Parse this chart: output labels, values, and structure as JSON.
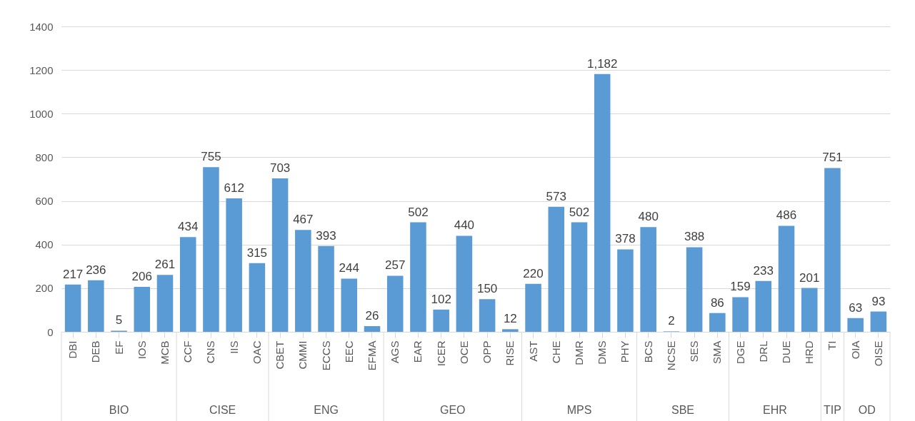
{
  "chart_data": {
    "type": "bar",
    "categories": [
      "DBI",
      "DEB",
      "EF",
      "IOS",
      "MCB",
      "CCF",
      "CNS",
      "IIS",
      "OAC",
      "CBET",
      "CMMI",
      "ECCS",
      "EEC",
      "EFMA",
      "AGS",
      "EAR",
      "ICER",
      "OCE",
      "OPP",
      "RISE",
      "AST",
      "CHE",
      "DMR",
      "DMS",
      "PHY",
      "BCS",
      "NCSE",
      "SES",
      "SMA",
      "DGE",
      "DRL",
      "DUE",
      "HRD",
      "TI",
      "OIA",
      "OISE"
    ],
    "values": [
      217,
      236,
      5,
      206,
      261,
      434,
      755,
      612,
      315,
      703,
      467,
      393,
      244,
      26,
      257,
      502,
      102,
      440,
      150,
      12,
      220,
      573,
      502,
      1182,
      378,
      480,
      2,
      388,
      86,
      159,
      233,
      486,
      201,
      751,
      63,
      93
    ],
    "value_labels": [
      "217",
      "236",
      "5",
      "206",
      "261",
      "434",
      "755",
      "612",
      "315",
      "703",
      "467",
      "393",
      "244",
      "26",
      "257",
      "502",
      "102",
      "440",
      "150",
      "12",
      "220",
      "573",
      "502",
      "1,182",
      "378",
      "480",
      "2",
      "388",
      "86",
      "159",
      "233",
      "486",
      "201",
      "751",
      "63",
      "93"
    ],
    "color": "#5b9bd5",
    "ylim": [
      0,
      1400
    ],
    "yticks": [
      0,
      200,
      400,
      600,
      800,
      1000,
      1200,
      1400
    ],
    "grid": "y",
    "annotations": [
      "BIO",
      "CISE",
      "ENG",
      "GEO",
      "MPS",
      "SBE",
      "EHR",
      "TIP",
      "OD"
    ]
  }
}
